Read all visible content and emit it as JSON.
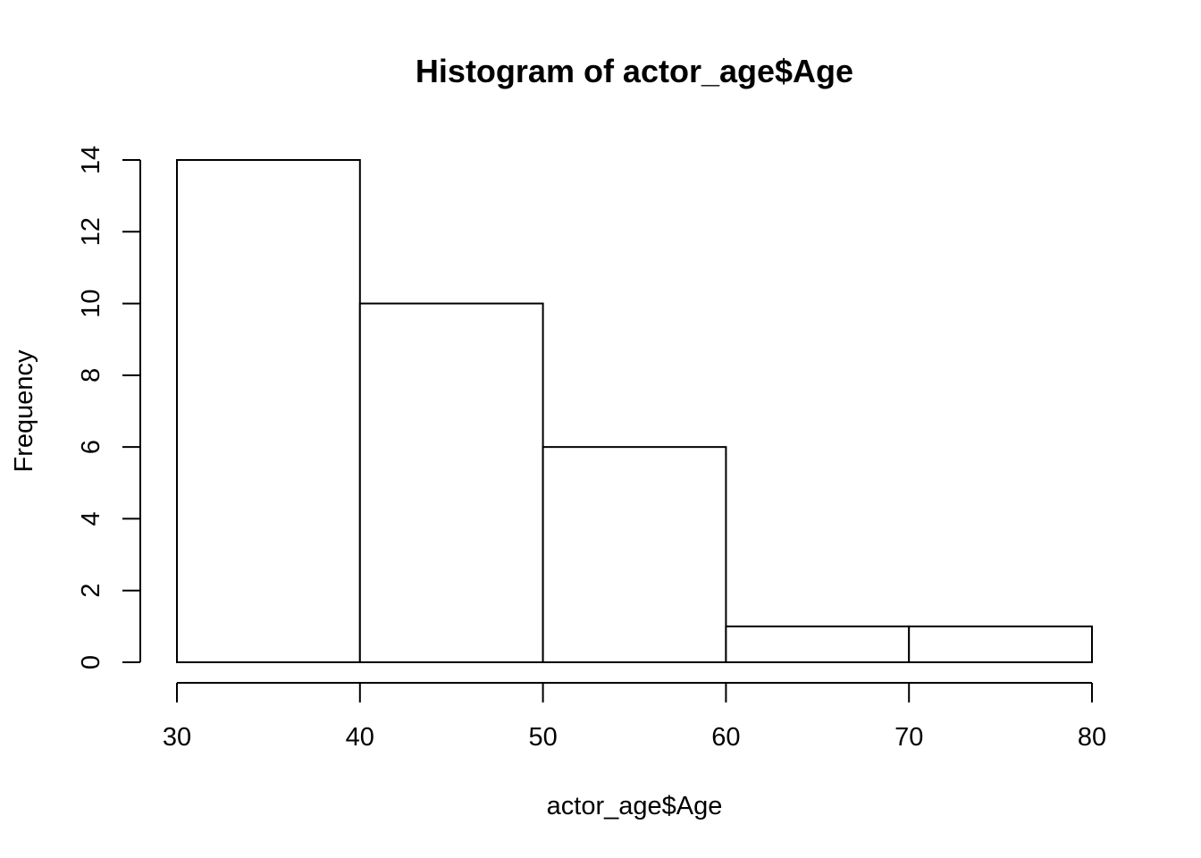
{
  "chart_data": {
    "type": "bar",
    "title": "Histogram of actor_age$Age",
    "xlabel": "actor_age$Age",
    "ylabel": "Frequency",
    "bins": [
      {
        "start": 30,
        "end": 40,
        "value": 14
      },
      {
        "start": 40,
        "end": 50,
        "value": 10
      },
      {
        "start": 50,
        "end": 60,
        "value": 6
      },
      {
        "start": 60,
        "end": 70,
        "value": 1
      },
      {
        "start": 70,
        "end": 80,
        "value": 1
      }
    ],
    "xlim": [
      30,
      80
    ],
    "ylim": [
      0,
      14
    ],
    "x_ticks": [
      "30",
      "40",
      "50",
      "60",
      "70",
      "80"
    ],
    "y_ticks": [
      "0",
      "2",
      "4",
      "6",
      "8",
      "10",
      "12",
      "14"
    ],
    "grid": false,
    "bar_fill": "#ffffff",
    "bar_stroke": "#000000"
  }
}
